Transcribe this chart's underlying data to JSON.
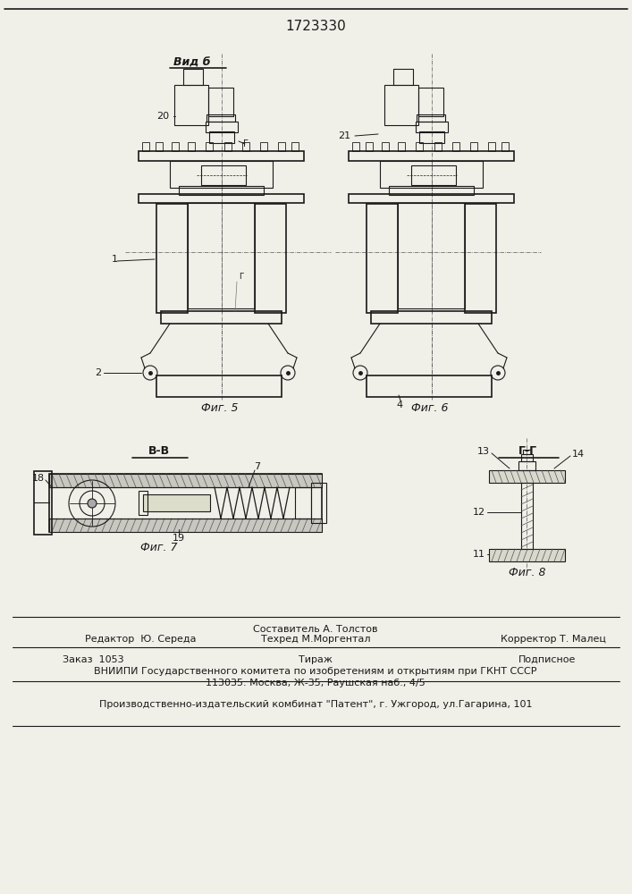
{
  "patent_number": "1723330",
  "background_color": "#f0efe8",
  "line_color": "#1a1a1a",
  "fig5_label": "Фиг. 5",
  "fig6_label": "Фиг. 6",
  "fig7_label": "Фиг. 7",
  "fig8_label": "Фиг. 8",
  "vid_b_label": "Вид б",
  "vv_label": "В-В",
  "gg_label": "Г-Г",
  "sestavitel": "Составитель А. Толстов",
  "editor_line1": "Редактор  Ю. Середа",
  "editor_line2": "Техред М.Моргентал",
  "editor_line3": "Корректор Т. Малец",
  "order": "Заказ  1053",
  "tirazh": "Тираж",
  "podpisnoe": "Подписное",
  "vniiipi_line1": "ВНИИПИ Государственного комитета по изобретениям и открытиям при ГКНТ СССР",
  "vniiipi_line2": "113035. Москва, Ж-35, Раушская наб., 4/5",
  "publisher_line": "Производственно-издательский комбинат \"Патент\", г. Ужгород, ул.Гагарина, 101"
}
